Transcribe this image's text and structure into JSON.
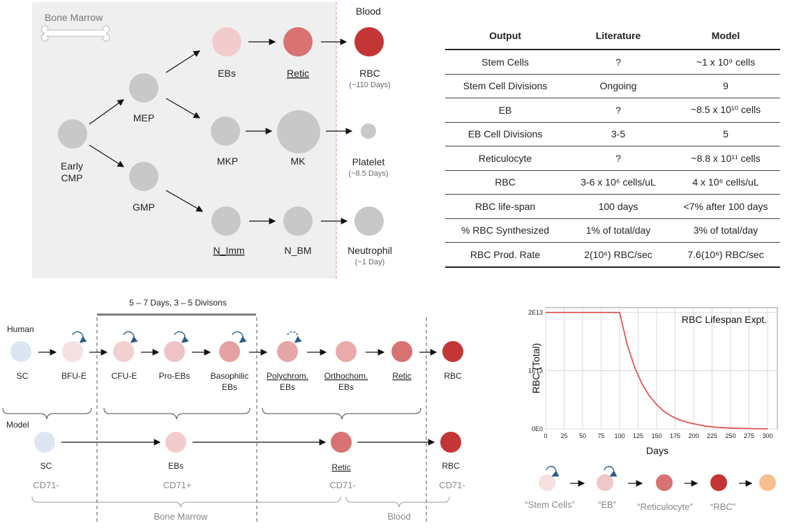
{
  "hierarchy": {
    "region_bone_marrow": "Bone Marrow",
    "region_blood": "Blood",
    "nodes": {
      "early_cmp_1": "Early",
      "early_cmp_2": "CMP",
      "mep": "MEP",
      "gmp": "GMP",
      "ebs": "EBs",
      "retic": "Retic",
      "rbc": "RBC",
      "rbc_life": "(~110 Days)",
      "mkp": "MKP",
      "mk": "MK",
      "platelet": "Platelet",
      "platelet_life": "(~8.5 Days)",
      "n_imm": "N_Imm",
      "n_bm": "N_BM",
      "neutrophil": "Neutrophil",
      "neutrophil_life": "(~1 Day)"
    }
  },
  "table": {
    "headers": [
      "Output",
      "Literature",
      "Model"
    ],
    "rows": [
      [
        "Stem Cells",
        "?",
        "~1 x 10⁹ cells"
      ],
      [
        "Stem Cell Divisions",
        "Ongoing",
        "9"
      ],
      [
        "EB",
        "?",
        "~8.5 x 10¹⁰ cells"
      ],
      [
        "EB Cell Divisions",
        "3-5",
        "5"
      ],
      [
        "Reticulocyte",
        "?",
        "~8.8 x 10¹¹ cells"
      ],
      [
        "RBC",
        "3-6 x 10⁶  cells/uL",
        "4 x 10⁶ cells/uL"
      ],
      [
        "RBC life-span",
        "100 days",
        "<7% after 100 days"
      ],
      [
        "% RBC Synthesized",
        "1% of total/day",
        "3% of total/day"
      ],
      [
        "RBC Prod. Rate",
        "2(10⁶) RBC/sec",
        "7.6(10⁶) RBC/sec"
      ]
    ]
  },
  "lineage": {
    "bracket_label": "5 – 7 Days, 3 – 5 Divisons",
    "human_label": "Human",
    "model_label": "Model",
    "human": {
      "sc": "SC",
      "bfu_e": "BFU-E",
      "cfu_e": "CFU-E",
      "pro_ebs": "Pro-EBs",
      "baso_1": "Basophilic",
      "baso_2": "EBs",
      "poly_1": "Polychrom.",
      "poly_2": "EBs",
      "ortho_1": "Orthochom.",
      "ortho_2": "EBs",
      "retic": "Retic",
      "rbc": "RBC"
    },
    "model": {
      "sc": "SC",
      "ebs": "EBs",
      "retic": "Retic",
      "rbc": "RBC",
      "cd_sc": "CD71-",
      "cd_ebs": "CD71+",
      "cd_retic": "CD71-",
      "cd_rbc": "CD71-"
    },
    "bone_marrow": "Bone Marrow",
    "blood": "Blood"
  },
  "chart_data": {
    "type": "line",
    "title": "RBC Lifespan Expt.",
    "xlabel": "Days",
    "ylabel": "RBC (Total)",
    "x_ticks": [
      0,
      25,
      50,
      75,
      100,
      125,
      150,
      175,
      200,
      225,
      250,
      275,
      300
    ],
    "y_ticks": [
      {
        "value": 0,
        "label": "0E0"
      },
      {
        "value": 10000000000000.0,
        "label": "1E13"
      },
      {
        "value": 20000000000000.0,
        "label": "2E13"
      }
    ],
    "xlim": [
      0,
      310
    ],
    "ylim": [
      0,
      22000000000000.0
    ],
    "series": [
      {
        "name": "RBC",
        "color": "#e05555",
        "x": [
          0,
          100,
          110,
          120,
          130,
          140,
          150,
          160,
          170,
          180,
          190,
          200,
          215,
          230,
          250,
          275,
          300
        ],
        "y": [
          20000000000000.0,
          20000000000000.0,
          14600000000000.0,
          10700000000000.0,
          7800000000000.0,
          5700000000000.0,
          4200000000000.0,
          3000000000000.0,
          2200000000000.0,
          1600000000000.0,
          1200000000000.0,
          900000000000.0,
          500000000000.0,
          300000000000.0,
          150000000000.0,
          60000000000.0,
          20000000000.0
        ]
      }
    ]
  },
  "legend_flow": {
    "stem": "“Stem Cells”",
    "eb": "“EB”",
    "retic": "“Reticulocyte”",
    "rbc": "“RBC”"
  },
  "colors": {
    "bone_marrow_bg": "#efefef",
    "gray_cell": "#c8c8c8",
    "sc_blue": "#dce6f2",
    "pale_pink": "#f6e0e0",
    "light_pink": "#f0c8c8",
    "mid_pink": "#e6a2a2",
    "retic_red": "#d97272",
    "rbc_red": "#c43535",
    "orange": "#f6c18e",
    "arrow_blue": "#2c5b8a"
  }
}
